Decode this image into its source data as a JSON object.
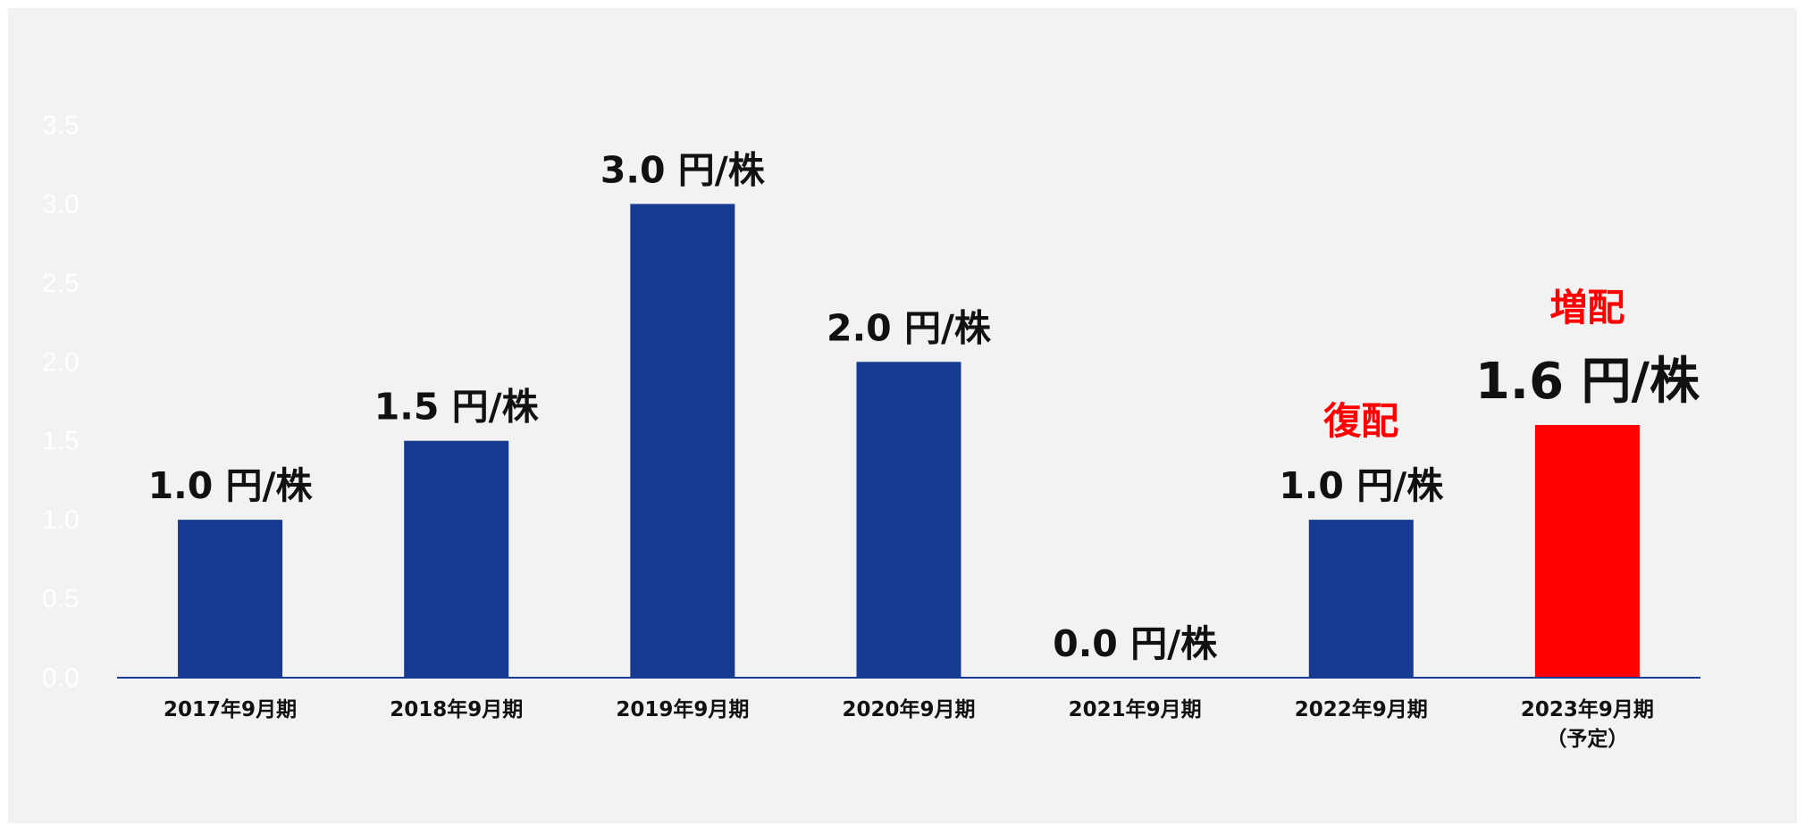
{
  "chart_data": {
    "type": "bar",
    "categories": [
      [
        "2017年9月期"
      ],
      [
        "2018年9月期"
      ],
      [
        "2019年9月期"
      ],
      [
        "2020年9月期"
      ],
      [
        "2021年9月期"
      ],
      [
        "2022年9月期"
      ],
      [
        "2023年9月期",
        "（予定）"
      ]
    ],
    "values": [
      1.0,
      1.5,
      3.0,
      2.0,
      0.0,
      1.0,
      1.6
    ],
    "data_labels": [
      "1.0 円/株",
      "1.5 円/株",
      "3.0 円/株",
      "2.0 円/株",
      "0.0 円/株",
      "1.0 円/株",
      "1.6 円/株"
    ],
    "annotations": [
      {
        "category_index": 5,
        "text": "復配"
      },
      {
        "category_index": 6,
        "text": "増配"
      }
    ],
    "ylim": [
      0,
      3.5
    ],
    "yticks": [
      "0.0",
      "0.5",
      "1.0",
      "1.5",
      "2.0",
      "2.5",
      "3.0",
      "3.5"
    ],
    "grid": false,
    "title": "",
    "xlabel": "",
    "ylabel": "",
    "colors": {
      "bar": "#163a92",
      "highlight_bar": "#ff0000",
      "highlight_text": "#ff0000",
      "baseline": "#163a92",
      "background": "#f2f2f2",
      "ytick_text": "#ffffff"
    },
    "highlight_index": 6
  }
}
